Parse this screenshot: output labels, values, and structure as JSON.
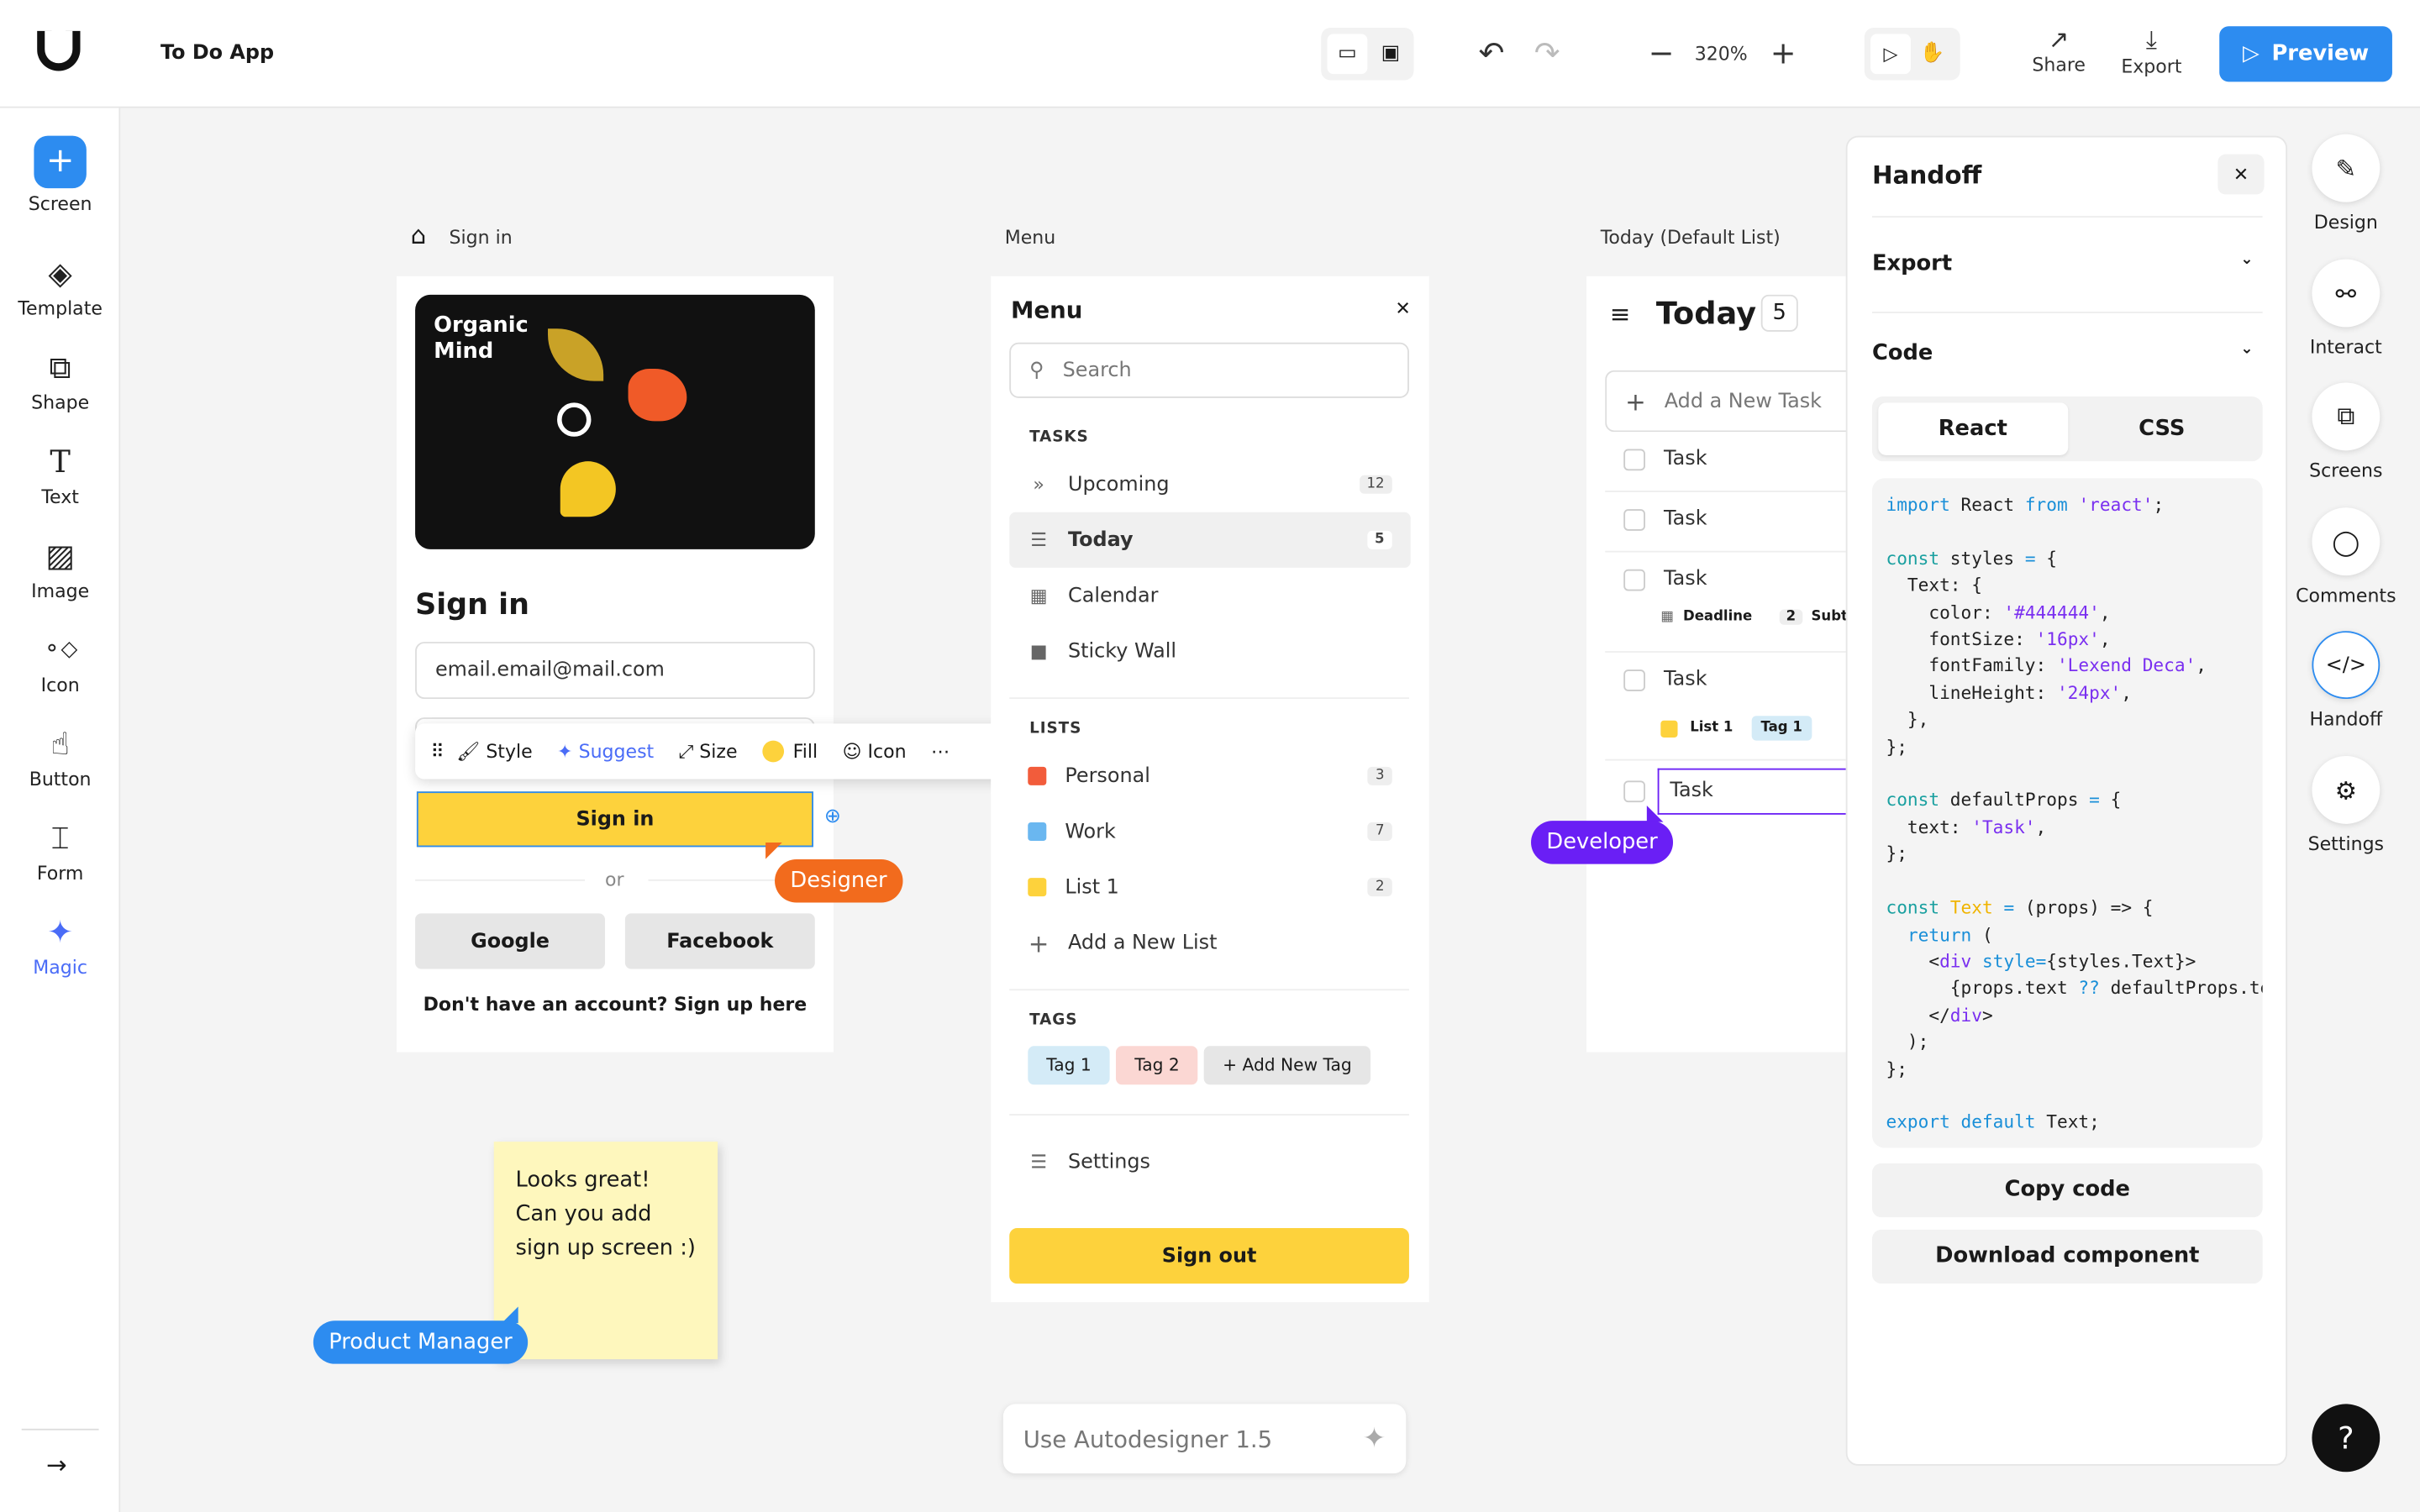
{
  "app": {
    "title": "To Do App",
    "zoom": "320%",
    "share": "Share",
    "export": "Export",
    "preview": "Preview"
  },
  "tools": [
    {
      "label": "Screen",
      "icon": "plus-icon"
    },
    {
      "label": "Template",
      "icon": "layers-icon"
    },
    {
      "label": "Shape",
      "icon": "shape-icon"
    },
    {
      "label": "Text",
      "icon": "text-icon"
    },
    {
      "label": "Image",
      "icon": "image-icon"
    },
    {
      "label": "Icon",
      "icon": "icons-icon"
    },
    {
      "label": "Button",
      "icon": "button-icon"
    },
    {
      "label": "Form",
      "icon": "form-icon"
    },
    {
      "label": "Magic",
      "icon": "sparkle-icon"
    }
  ],
  "signin": {
    "frame_label": "Sign in",
    "brand": "Organic\nMind",
    "title": "Sign in",
    "email": "email.email@mail.com",
    "button": "Sign in",
    "or": "or",
    "google": "Google",
    "facebook": "Facebook",
    "signup": "Don't have an account? Sign up here"
  },
  "floating_toolbar": {
    "style": "Style",
    "suggest": "Suggest",
    "size": "Size",
    "fill": "Fill",
    "icon": "Icon"
  },
  "menu": {
    "frame_label": "Menu",
    "title": "Menu",
    "search_placeholder": "Search",
    "tasks_header": "TASKS",
    "tasks": [
      {
        "label": "Upcoming",
        "count": "12"
      },
      {
        "label": "Today",
        "count": "5"
      },
      {
        "label": "Calendar"
      },
      {
        "label": "Sticky Wall"
      }
    ],
    "lists_header": "LISTS",
    "lists": [
      {
        "label": "Personal",
        "count": "3",
        "color": "#f25c3b"
      },
      {
        "label": "Work",
        "count": "7",
        "color": "#6ab7f0"
      },
      {
        "label": "List 1",
        "count": "2",
        "color": "#fdd23c"
      }
    ],
    "add_list": "Add a New List",
    "tags_header": "TAGS",
    "tags": [
      "Tag 1",
      "Tag 2",
      "+ Add New Tag"
    ],
    "settings": "Settings",
    "sign_out": "Sign out"
  },
  "today": {
    "frame_label": "Today (Default List)",
    "title": "Today",
    "count": "5",
    "add_task": "Add a New Task",
    "tasks": [
      "Task",
      "Task",
      "Task",
      "Task",
      "Task"
    ],
    "deadline": "Deadline",
    "subtasks_count": "2",
    "subtasks": "Subtasks",
    "list": "List 1",
    "tag": "Tag 1"
  },
  "cursors": {
    "designer": "Designer",
    "developer": "Developer",
    "pm": "Product Manager"
  },
  "sticky": "Looks great!\nCan you add\nsign up screen :)",
  "autodesigner": "Use Autodesigner 1.5",
  "handoff": {
    "title": "Handoff",
    "export": "Export",
    "code": "Code",
    "tab_react": "React",
    "tab_css": "CSS",
    "copy": "Copy code",
    "download": "Download component"
  },
  "right": [
    {
      "label": "Design",
      "icon": "pencil-icon"
    },
    {
      "label": "Interact",
      "icon": "interact-icon"
    },
    {
      "label": "Screens",
      "icon": "screens-icon"
    },
    {
      "label": "Comments",
      "icon": "comment-icon"
    },
    {
      "label": "Handoff",
      "icon": "code-icon"
    },
    {
      "label": "Settings",
      "icon": "gear-icon"
    }
  ],
  "help": "?",
  "colors": {
    "accent": "#2d8cf0",
    "developer": "#6a1ff5",
    "designer": "#f26b1d",
    "yellow": "#fdd23c"
  }
}
